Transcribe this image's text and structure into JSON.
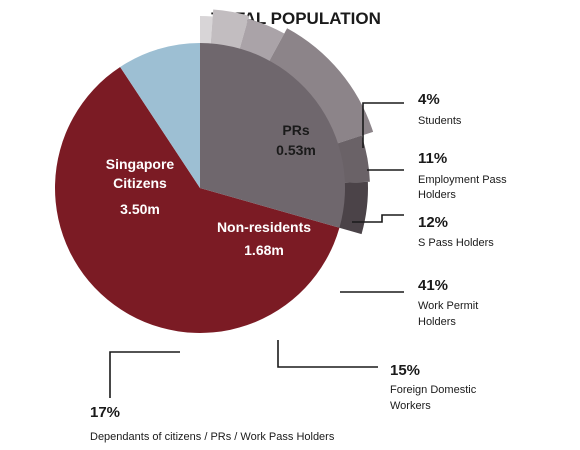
{
  "chart_data": {
    "type": "pie",
    "title": "TOTAL POPULATION",
    "main_slices": [
      {
        "name": "Singapore Citizens",
        "value_label": "3.50m",
        "value": 3.5,
        "color": "#7b1b24"
      },
      {
        "name": "PRs",
        "value_label": "0.53m",
        "value": 0.53,
        "color": "#9dbfd3"
      },
      {
        "name": "Non-residents",
        "value_label": "1.68m",
        "value": 1.68,
        "color": "#6f676d"
      }
    ],
    "breakdown_of": "Non-residents",
    "breakdown": [
      {
        "percent_label": "4%",
        "value": 4,
        "description": "Students",
        "color": "#d8d5d7"
      },
      {
        "percent_label": "11%",
        "value": 11,
        "description": "Employment Pass Holders",
        "color": "#c2bdc0"
      },
      {
        "percent_label": "12%",
        "value": 12,
        "description": "S Pass Holders",
        "color": "#aaa3a8"
      },
      {
        "percent_label": "41%",
        "value": 41,
        "description": "Work Permit Holders",
        "color": "#8c8489"
      },
      {
        "percent_label": "15%",
        "value": 15,
        "description": "Foreign Domestic Workers",
        "color": "#6a6267"
      },
      {
        "percent_label": "17%",
        "value": 17,
        "description": "Dependants of citizens / PRs / Work Pass Holders",
        "color": "#4b4348"
      }
    ]
  }
}
